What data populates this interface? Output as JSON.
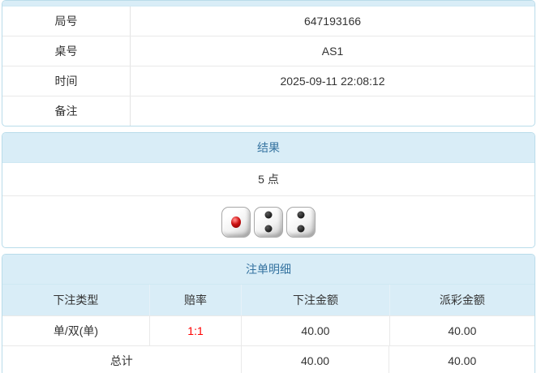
{
  "colors": {
    "panel_border": "#b9dcea",
    "header_bg": "#d9edf7",
    "header_text": "#3573a0",
    "odds_red": "#ff0000",
    "body_text": "#333333"
  },
  "info_table": {
    "rows": [
      {
        "label": "局号",
        "value": "647193166"
      },
      {
        "label": "桌号",
        "value": "AS1"
      },
      {
        "label": "时间",
        "value": "2025-09-11 22:08:12"
      },
      {
        "label": "备注",
        "value": ""
      }
    ]
  },
  "result_panel": {
    "title": "结果",
    "points": "5 点",
    "dice": [
      {
        "value": 1,
        "pip_color": "red"
      },
      {
        "value": 2,
        "pip_color": "black"
      },
      {
        "value": 2,
        "pip_color": "black"
      }
    ]
  },
  "bet_panel": {
    "title": "注单明细",
    "columns": [
      "下注类型",
      "赔率",
      "下注金额",
      "派彩金额"
    ],
    "rows": [
      {
        "type": "单/双(单)",
        "odds": "1:1",
        "bet": "40.00",
        "payout": "40.00"
      }
    ],
    "total": {
      "label": "总计",
      "bet": "40.00",
      "payout": "40.00"
    }
  }
}
